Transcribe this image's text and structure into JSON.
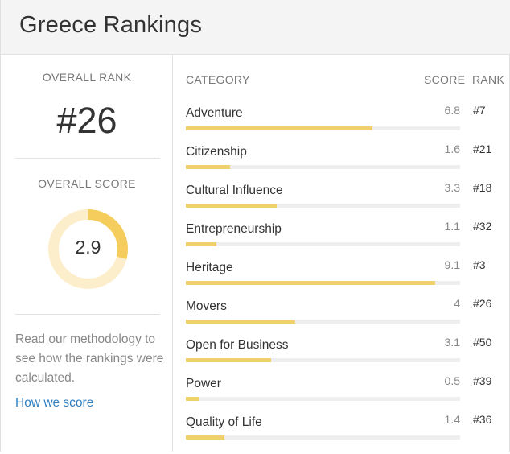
{
  "header": {
    "title": "Greece Rankings"
  },
  "overall": {
    "rank_label": "OVERALL RANK",
    "rank_value": "#26",
    "score_label": "OVERALL SCORE",
    "score_value": "2.9",
    "score_fraction": 0.29
  },
  "methodology": {
    "text": "Read our methodology to see how the rankings were calculated.",
    "link_label": "How we score"
  },
  "table": {
    "headers": {
      "category": "CATEGORY",
      "score": "SCORE",
      "rank": "RANK"
    },
    "max_score": 10,
    "rows": [
      {
        "name": "Adventure",
        "score": "6.8",
        "rank": "#7",
        "value": 6.8
      },
      {
        "name": "Citizenship",
        "score": "1.6",
        "rank": "#21",
        "value": 1.6
      },
      {
        "name": "Cultural Influence",
        "score": "3.3",
        "rank": "#18",
        "value": 3.3
      },
      {
        "name": "Entrepreneurship",
        "score": "1.1",
        "rank": "#32",
        "value": 1.1
      },
      {
        "name": "Heritage",
        "score": "9.1",
        "rank": "#3",
        "value": 9.1
      },
      {
        "name": "Movers",
        "score": "4",
        "rank": "#26",
        "value": 4
      },
      {
        "name": "Open for Business",
        "score": "3.1",
        "rank": "#50",
        "value": 3.1
      },
      {
        "name": "Power",
        "score": "0.5",
        "rank": "#39",
        "value": 0.5
      },
      {
        "name": "Quality of Life",
        "score": "1.4",
        "rank": "#36",
        "value": 1.4
      }
    ]
  },
  "colors": {
    "accent": "#f0d06a",
    "donut_track": "#fdeecb",
    "donut_fill": "#f5cd5c",
    "link": "#2f7fc1"
  }
}
